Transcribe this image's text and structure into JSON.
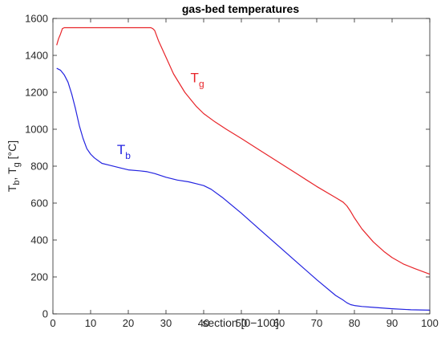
{
  "chart_data": {
    "type": "line",
    "title": "gas-bed temperatures",
    "xlabel": "section [0−100]",
    "ylabel": {
      "parts": [
        {
          "text": "T",
          "sub": false
        },
        {
          "text": "b",
          "sub": true
        },
        {
          "text": ", T",
          "sub": false
        },
        {
          "text": "g",
          "sub": true
        },
        {
          "text": " [°C]",
          "sub": false
        }
      ]
    },
    "xlim": [
      0,
      100
    ],
    "ylim": [
      0,
      1600
    ],
    "xticks": [
      "0",
      "10",
      "20",
      "30",
      "40",
      "50",
      "60",
      "70",
      "80",
      "90",
      "100"
    ],
    "yticks": [
      "0",
      "200",
      "400",
      "600",
      "800",
      "1000",
      "1200",
      "1400",
      "1600"
    ],
    "grid": false,
    "series": [
      {
        "key": "Tg",
        "color": "#e8252a",
        "x": [
          1,
          1.5,
          2,
          2.5,
          3,
          5,
          10,
          15,
          20,
          25,
          26,
          26.5,
          27,
          28,
          30,
          32,
          35,
          38,
          40,
          43,
          46,
          50,
          55,
          60,
          65,
          70,
          75,
          77,
          78,
          79,
          80,
          82,
          85,
          88,
          90,
          93,
          96,
          100
        ],
        "y": [
          1455,
          1490,
          1515,
          1545,
          1550,
          1550,
          1550,
          1550,
          1550,
          1550,
          1550,
          1545,
          1535,
          1480,
          1390,
          1300,
          1200,
          1125,
          1085,
          1040,
          1000,
          950,
          885,
          820,
          755,
          690,
          630,
          605,
          585,
          555,
          520,
          460,
          390,
          335,
          305,
          270,
          245,
          215
        ]
      },
      {
        "key": "Tb",
        "color": "#2323e0",
        "x": [
          1,
          2,
          3,
          4,
          5,
          6,
          7,
          8,
          9,
          10,
          11,
          12,
          13,
          15,
          18,
          20,
          23,
          25,
          27,
          30,
          33,
          36,
          38,
          40,
          42,
          45,
          50,
          55,
          60,
          65,
          70,
          75,
          77,
          78,
          79,
          80,
          82,
          85,
          90,
          95,
          100
        ],
        "y": [
          1330,
          1320,
          1295,
          1255,
          1190,
          1110,
          1020,
          950,
          895,
          865,
          845,
          830,
          815,
          805,
          790,
          780,
          775,
          770,
          760,
          740,
          725,
          715,
          705,
          695,
          675,
          630,
          545,
          455,
          365,
          275,
          185,
          100,
          75,
          60,
          50,
          45,
          40,
          35,
          28,
          22,
          20
        ]
      }
    ],
    "annotations": [
      {
        "main": "T",
        "sub": "g",
        "color": "#e8252a",
        "x": 36.5,
        "y": 1255
      },
      {
        "main": "T",
        "sub": "b",
        "color": "#2323e0",
        "x": 17,
        "y": 865
      }
    ]
  }
}
